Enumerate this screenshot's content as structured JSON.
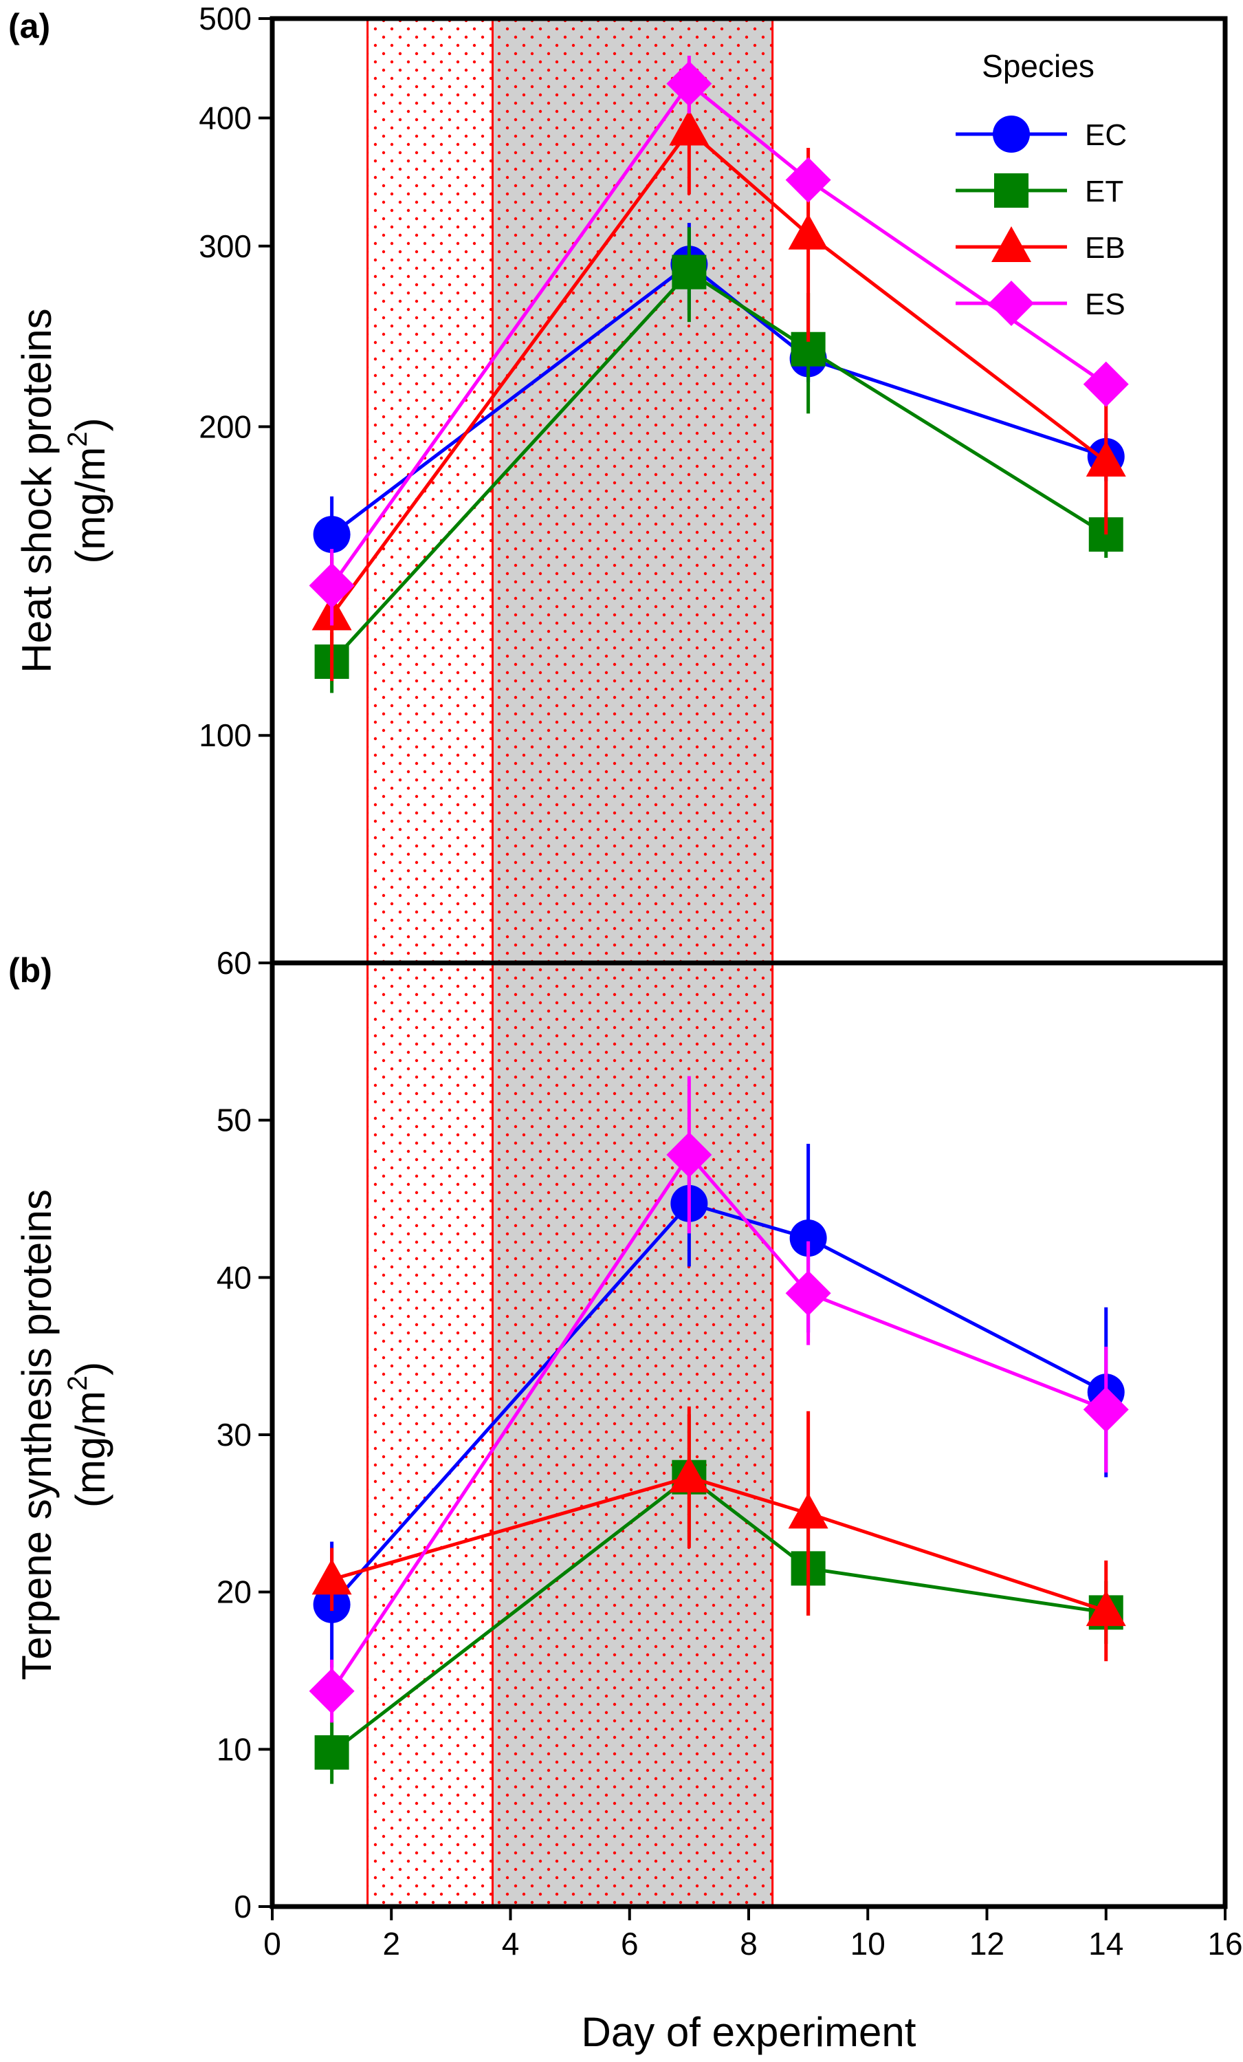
{
  "chart_data": [
    {
      "panel": "(a)",
      "type": "line",
      "title": "",
      "xlabel": "Day of experiment",
      "ylabel": [
        "Heat shock proteins",
        "(mg/m",
        "2",
        ")"
      ],
      "xlim": [
        0,
        16
      ],
      "ylim": [
        60,
        500
      ],
      "y_scale": "log",
      "x_ticks": [
        0,
        2,
        4,
        6,
        8,
        10,
        12,
        14,
        16
      ],
      "y_ticks": [
        100,
        200,
        300,
        400,
        500
      ],
      "y_tick_labels": [
        "100",
        "200",
        "300",
        "400",
        "500"
      ],
      "grid": false,
      "legend": {
        "title": "Species",
        "position": "top-right",
        "entries": [
          "EC",
          "ET",
          "EB",
          "ES"
        ]
      },
      "shaded_regions": [
        {
          "x": [
            1.6,
            3.7
          ],
          "fill": "#ffffff",
          "pattern": "red-dots"
        },
        {
          "x": [
            3.7,
            8.4
          ],
          "fill": "#d0d0d0",
          "pattern": "red-dots"
        }
      ],
      "x": [
        1,
        7,
        9,
        14
      ],
      "series": [
        {
          "name": "EC",
          "color": "#0000ff",
          "marker": "circle",
          "values": [
            157,
            288,
            233,
            187
          ],
          "err": [
            14,
            28,
            12,
            10
          ]
        },
        {
          "name": "ET",
          "color": "#008000",
          "marker": "square",
          "values": [
            118,
            283,
            238,
            157
          ],
          "err": [
            8,
            30,
            32,
            8
          ]
        },
        {
          "name": "EB",
          "color": "#ff0000",
          "marker": "triangle",
          "values": [
            131,
            389,
            308,
            185
          ],
          "err": [
            18,
            52,
            66,
            28
          ]
        },
        {
          "name": "ES",
          "color": "#ff00ff",
          "marker": "diamond",
          "values": [
            140,
            432,
            348,
            220
          ],
          "err": [
            12,
            28,
            14,
            8
          ]
        }
      ]
    },
    {
      "panel": "(b)",
      "type": "line",
      "title": "",
      "xlabel": "Day of experiment",
      "ylabel": [
        "Terpene synthesis proteins",
        "(mg/m",
        "2",
        ")"
      ],
      "xlim": [
        0,
        16
      ],
      "ylim": [
        0,
        60
      ],
      "y_scale": "linear",
      "x_ticks": [
        0,
        2,
        4,
        6,
        8,
        10,
        12,
        14,
        16
      ],
      "y_ticks": [
        0,
        10,
        20,
        30,
        40,
        50,
        60
      ],
      "y_tick_labels": [
        "0",
        "10",
        "20",
        "30",
        "40",
        "50",
        "60"
      ],
      "grid": false,
      "shaded_regions": [
        {
          "x": [
            1.6,
            3.7
          ],
          "fill": "#ffffff",
          "pattern": "red-dots"
        },
        {
          "x": [
            3.7,
            8.4
          ],
          "fill": "#d0d0d0",
          "pattern": "red-dots"
        }
      ],
      "x": [
        1,
        7,
        9,
        14
      ],
      "series": [
        {
          "name": "EC",
          "color": "#0000ff",
          "marker": "circle",
          "values": [
            19.2,
            44.7,
            42.5,
            32.7
          ],
          "err": [
            4.0,
            4.0,
            6.0,
            5.4
          ]
        },
        {
          "name": "ET",
          "color": "#008000",
          "marker": "square",
          "values": [
            9.8,
            27.3,
            21.5,
            18.7
          ],
          "err": [
            2.0,
            4.0,
            3.0,
            2.0
          ]
        },
        {
          "name": "EB",
          "color": "#ff0000",
          "marker": "triangle",
          "values": [
            20.8,
            27.3,
            25.0,
            18.8
          ],
          "err": [
            2.0,
            4.5,
            6.5,
            3.2
          ]
        },
        {
          "name": "ES",
          "color": "#ff00ff",
          "marker": "diamond",
          "values": [
            13.7,
            47.8,
            39.0,
            31.6
          ],
          "err": [
            2.0,
            5.0,
            3.3,
            4.0
          ]
        }
      ]
    }
  ]
}
